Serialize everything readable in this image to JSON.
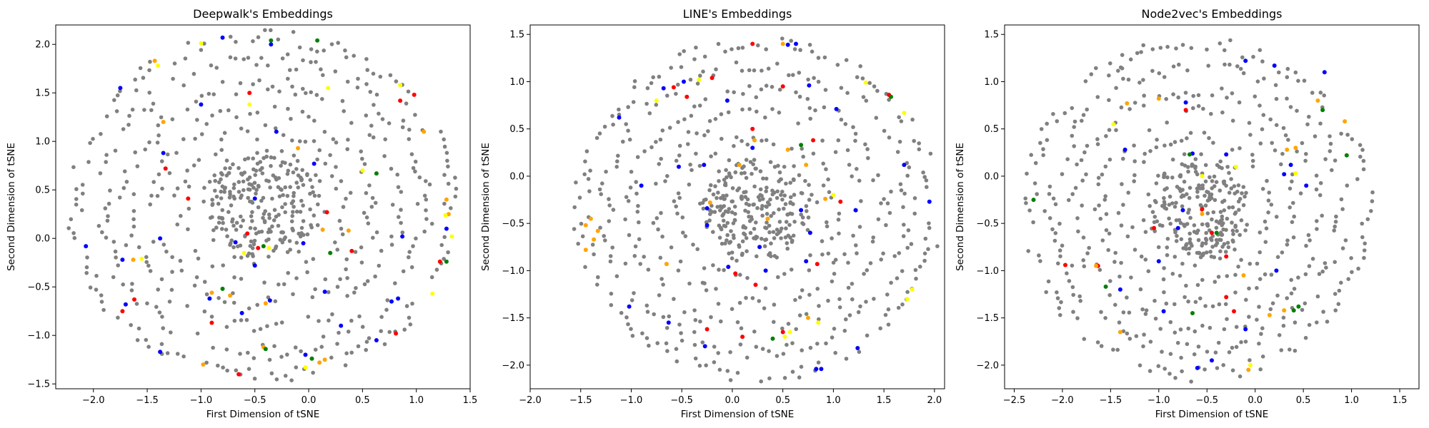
{
  "chart_data": [
    {
      "type": "scatter",
      "title": "Deepwalk's Embeddings",
      "xlabel": "First Dimension of tSNE",
      "ylabel": "Second Dimension of tSNE",
      "xlim": [
        -2.35,
        1.5
      ],
      "ylim": [
        -1.55,
        2.2
      ],
      "xticks": [
        -2.0,
        -1.5,
        -1.0,
        -0.5,
        0.0,
        0.5,
        1.0,
        1.5
      ],
      "yticks": [
        -1.5,
        -1.0,
        -0.5,
        0.0,
        0.5,
        1.0,
        1.5,
        2.0
      ],
      "xtick_labels": [
        "−2.0",
        "−1.5",
        "−1.0",
        "−0.5",
        "0.0",
        "0.5",
        "1.0",
        "1.5"
      ],
      "ytick_labels": [
        "−1.5",
        "−1.0",
        "−0.5",
        "0.0",
        "0.5",
        "1.0",
        "1.5",
        "2.0"
      ],
      "grid": false,
      "cloud": {
        "center": [
          -0.42,
          0.33
        ],
        "rx": 1.75,
        "ry": 1.75,
        "color": "#808080"
      },
      "colored_points": [
        {
          "color": "#0000ff",
          "points": [
            [
              -0.8,
              2.07
            ],
            [
              -1.75,
              1.55
            ],
            [
              -1.0,
              1.38
            ],
            [
              -1.35,
              0.88
            ],
            [
              -0.3,
              1.1
            ],
            [
              0.05,
              0.77
            ],
            [
              -0.5,
              0.41
            ],
            [
              -0.68,
              -0.04
            ],
            [
              -0.5,
              -0.28
            ],
            [
              -0.05,
              -0.05
            ],
            [
              -1.38,
              0.0
            ],
            [
              -2.07,
              -0.08
            ],
            [
              -1.73,
              -0.22
            ],
            [
              -1.7,
              -0.68
            ],
            [
              -0.92,
              -0.62
            ],
            [
              -1.38,
              -1.17
            ],
            [
              -0.62,
              -0.77
            ],
            [
              -0.36,
              -0.64
            ],
            [
              0.15,
              -0.55
            ],
            [
              0.77,
              -0.65
            ],
            [
              0.83,
              -0.62
            ],
            [
              0.87,
              0.02
            ],
            [
              1.28,
              0.1
            ],
            [
              0.63,
              -1.05
            ],
            [
              -0.35,
              2.0
            ],
            [
              0.3,
              -0.9
            ],
            [
              -0.03,
              -1.2
            ]
          ]
        },
        {
          "color": "#ff0000",
          "points": [
            [
              -1.33,
              0.72
            ],
            [
              -1.62,
              -0.63
            ],
            [
              -1.73,
              -0.75
            ],
            [
              -0.9,
              -0.87
            ],
            [
              -0.65,
              -1.4
            ],
            [
              -0.57,
              0.05
            ],
            [
              -0.47,
              -0.1
            ],
            [
              0.17,
              0.27
            ],
            [
              0.4,
              -0.13
            ],
            [
              0.98,
              1.48
            ],
            [
              0.85,
              1.42
            ],
            [
              -0.55,
              1.5
            ],
            [
              1.22,
              -0.24
            ],
            [
              0.81,
              -0.98
            ],
            [
              -1.12,
              0.41
            ]
          ]
        },
        {
          "color": "#ffa500",
          "points": [
            [
              -1.43,
              1.83
            ],
            [
              -1.35,
              1.2
            ],
            [
              -1.63,
              -0.22
            ],
            [
              -0.98,
              -1.3
            ],
            [
              -0.9,
              -0.56
            ],
            [
              -0.73,
              -0.59
            ],
            [
              -0.4,
              -0.67
            ],
            [
              -0.42,
              -1.12
            ],
            [
              0.1,
              -1.28
            ],
            [
              0.15,
              -1.25
            ],
            [
              0.37,
              0.08
            ],
            [
              1.07,
              1.1
            ],
            [
              1.28,
              0.4
            ],
            [
              1.3,
              0.25
            ],
            [
              0.13,
              0.09
            ],
            [
              -0.1,
              0.93
            ]
          ]
        },
        {
          "color": "#ffff00",
          "points": [
            [
              -1.55,
              -0.21
            ],
            [
              -1.0,
              2.01
            ],
            [
              -1.4,
              1.78
            ],
            [
              0.5,
              0.7
            ],
            [
              0.18,
              1.55
            ],
            [
              -0.55,
              1.38
            ],
            [
              -0.37,
              -0.1
            ],
            [
              1.33,
              0.02
            ],
            [
              1.15,
              -0.57
            ],
            [
              -0.03,
              -1.33
            ],
            [
              0.85,
              1.58
            ],
            [
              -0.6,
              -0.15
            ],
            [
              1.27,
              0.24
            ]
          ]
        },
        {
          "color": "#008000",
          "points": [
            [
              -0.35,
              2.04
            ],
            [
              0.08,
              2.04
            ],
            [
              0.63,
              0.67
            ],
            [
              -0.42,
              -0.08
            ],
            [
              -0.8,
              -0.52
            ],
            [
              0.03,
              -1.24
            ],
            [
              -0.4,
              -1.14
            ],
            [
              1.28,
              -0.24
            ],
            [
              0.2,
              -0.15
            ]
          ]
        }
      ]
    },
    {
      "type": "scatter",
      "title": "LINE's Embeddings",
      "xlabel": "First Dimension of tSNE",
      "ylabel": "Second Dimension of tSNE",
      "xlim": [
        -2.0,
        2.1
      ],
      "ylim": [
        -2.25,
        1.6
      ],
      "xticks": [
        -2.0,
        -1.5,
        -1.0,
        -0.5,
        0.0,
        0.5,
        1.0,
        1.5,
        2.0
      ],
      "yticks": [
        -2.0,
        -1.5,
        -1.0,
        -0.5,
        0.0,
        0.5,
        1.0,
        1.5
      ],
      "xtick_labels": [
        "−2.0",
        "−1.5",
        "−1.0",
        "−0.5",
        "0.0",
        "0.5",
        "1.0",
        "1.5",
        "2.0"
      ],
      "ytick_labels": [
        "−2.0",
        "−1.5",
        "−1.0",
        "−0.5",
        "0.0",
        "0.5",
        "1.0",
        "1.5"
      ],
      "grid": false,
      "cloud": {
        "center": [
          0.25,
          -0.35
        ],
        "rx": 1.75,
        "ry": 1.75,
        "color": "#808080"
      },
      "colored_points": [
        {
          "color": "#0000ff",
          "points": [
            [
              -1.12,
              0.62
            ],
            [
              -0.68,
              0.93
            ],
            [
              -0.48,
              1.0
            ],
            [
              -0.9,
              -0.1
            ],
            [
              -0.53,
              0.1
            ],
            [
              -0.28,
              0.12
            ],
            [
              0.2,
              0.3
            ],
            [
              -0.25,
              -0.52
            ],
            [
              -0.25,
              -0.34
            ],
            [
              -0.04,
              -0.96
            ],
            [
              0.33,
              -1.0
            ],
            [
              -0.63,
              -1.55
            ],
            [
              -0.27,
              -1.8
            ],
            [
              -1.02,
              -1.38
            ],
            [
              0.55,
              1.39
            ],
            [
              0.63,
              1.4
            ],
            [
              0.76,
              0.96
            ],
            [
              1.03,
              0.71
            ],
            [
              1.7,
              0.12
            ],
            [
              1.95,
              -0.27
            ],
            [
              1.22,
              -0.36
            ],
            [
              0.77,
              -0.6
            ],
            [
              0.73,
              -0.9
            ],
            [
              1.24,
              -1.82
            ],
            [
              0.83,
              -2.04
            ],
            [
              0.88,
              -2.04
            ],
            [
              0.68,
              -0.36
            ],
            [
              0.27,
              -0.75
            ],
            [
              -0.05,
              0.8
            ]
          ]
        },
        {
          "color": "#ff0000",
          "points": [
            [
              -0.58,
              0.94
            ],
            [
              -0.45,
              0.84
            ],
            [
              -0.2,
              1.04
            ],
            [
              0.2,
              1.4
            ],
            [
              0.5,
              0.95
            ],
            [
              0.8,
              0.38
            ],
            [
              1.07,
              -0.27
            ],
            [
              0.84,
              -0.93
            ],
            [
              0.23,
              -1.15
            ],
            [
              0.03,
              -1.03
            ],
            [
              -0.25,
              -1.62
            ],
            [
              0.5,
              -1.65
            ],
            [
              1.55,
              0.86
            ],
            [
              0.1,
              -1.7
            ],
            [
              0.2,
              0.5
            ]
          ]
        },
        {
          "color": "#ffa500",
          "points": [
            [
              -1.45,
              -0.52
            ],
            [
              -1.37,
              -0.67
            ],
            [
              -1.45,
              -0.78
            ],
            [
              -1.4,
              -0.45
            ],
            [
              -1.33,
              -0.58
            ],
            [
              0.22,
              0.38
            ],
            [
              0.55,
              0.28
            ],
            [
              0.73,
              0.12
            ],
            [
              0.07,
              0.12
            ],
            [
              0.35,
              -0.45
            ],
            [
              0.92,
              -0.24
            ],
            [
              0.5,
              1.4
            ],
            [
              0.75,
              -1.5
            ],
            [
              -0.65,
              -0.93
            ],
            [
              -0.22,
              -0.28
            ]
          ]
        },
        {
          "color": "#ffff00",
          "points": [
            [
              -0.33,
              1.02
            ],
            [
              1.7,
              0.67
            ],
            [
              1.78,
              -1.2
            ],
            [
              1.73,
              -1.3
            ],
            [
              0.85,
              -1.55
            ],
            [
              0.57,
              -1.65
            ],
            [
              1.32,
              0.99
            ],
            [
              -0.75,
              0.8
            ],
            [
              0.52,
              -1.7
            ],
            [
              1.0,
              -0.2
            ]
          ]
        },
        {
          "color": "#008000",
          "points": [
            [
              0.4,
              -1.72
            ],
            [
              1.57,
              0.84
            ],
            [
              0.68,
              0.33
            ]
          ]
        }
      ]
    },
    {
      "type": "scatter",
      "title": "Node2vec's Embeddings",
      "xlabel": "First Dimension of tSNE",
      "ylabel": "Second Dimension of tSNE",
      "xlim": [
        -2.6,
        1.7
      ],
      "ylim": [
        -2.25,
        1.6
      ],
      "xticks": [
        -2.5,
        -2.0,
        -1.5,
        -1.0,
        -0.5,
        0.0,
        0.5,
        1.0,
        1.5
      ],
      "yticks": [
        -2.0,
        -1.5,
        -1.0,
        -0.5,
        0.0,
        0.5,
        1.0,
        1.5
      ],
      "xtick_labels": [
        "−2.5",
        "−2.0",
        "−1.5",
        "−1.0",
        "−0.5",
        "0.0",
        "0.5",
        "1.0",
        "1.5"
      ],
      "ytick_labels": [
        "−2.0",
        "−1.5",
        "−1.0",
        "−0.5",
        "0.0",
        "0.5",
        "1.0",
        "1.5"
      ],
      "grid": false,
      "cloud": {
        "center": [
          -0.6,
          -0.35
        ],
        "rx": 1.75,
        "ry": 1.75,
        "color": "#808080"
      },
      "colored_points": [
        {
          "color": "#0000ff",
          "points": [
            [
              -0.1,
              1.22
            ],
            [
              0.2,
              1.17
            ],
            [
              -1.35,
              0.28
            ],
            [
              -0.72,
              0.78
            ],
            [
              -0.65,
              0.24
            ],
            [
              -0.3,
              0.23
            ],
            [
              -0.75,
              -0.36
            ],
            [
              -1.0,
              -0.9
            ],
            [
              -1.4,
              -1.2
            ],
            [
              -0.95,
              -1.43
            ],
            [
              -0.8,
              -0.55
            ],
            [
              0.3,
              0.02
            ],
            [
              0.37,
              0.12
            ],
            [
              0.53,
              -0.1
            ],
            [
              -0.6,
              -2.03
            ],
            [
              -0.45,
              -1.95
            ],
            [
              -0.1,
              -1.62
            ],
            [
              0.22,
              -1.0
            ],
            [
              0.72,
              1.1
            ]
          ]
        },
        {
          "color": "#ff0000",
          "points": [
            [
              -1.97,
              -0.94
            ],
            [
              -1.63,
              -0.95
            ],
            [
              -0.72,
              0.7
            ],
            [
              -0.55,
              -0.35
            ],
            [
              -0.45,
              -0.6
            ],
            [
              -0.3,
              -1.28
            ],
            [
              -0.22,
              -1.43
            ],
            [
              -0.3,
              -0.85
            ],
            [
              -1.05,
              -0.55
            ]
          ]
        },
        {
          "color": "#ffa500",
          "points": [
            [
              -1.33,
              0.77
            ],
            [
              -1.0,
              0.82
            ],
            [
              -0.55,
              -0.4
            ],
            [
              -0.12,
              -1.05
            ],
            [
              0.15,
              -1.47
            ],
            [
              0.3,
              -1.42
            ],
            [
              0.33,
              0.28
            ],
            [
              0.42,
              0.3
            ],
            [
              0.93,
              0.58
            ],
            [
              0.65,
              0.8
            ],
            [
              -0.07,
              -2.05
            ],
            [
              -1.4,
              -1.65
            ],
            [
              -1.65,
              -0.95
            ]
          ]
        },
        {
          "color": "#ffff00",
          "points": [
            [
              -1.47,
              0.55
            ],
            [
              0.42,
              0.03
            ],
            [
              -0.05,
              -2.0
            ],
            [
              -0.55,
              0.0
            ],
            [
              -0.2,
              0.1
            ]
          ]
        },
        {
          "color": "#008000",
          "points": [
            [
              -2.3,
              -0.25
            ],
            [
              -1.55,
              -1.17
            ],
            [
              -0.65,
              -1.45
            ],
            [
              0.7,
              0.7
            ],
            [
              0.95,
              0.22
            ],
            [
              0.45,
              -1.38
            ],
            [
              0.4,
              -1.42
            ],
            [
              -0.4,
              -0.6
            ],
            [
              -0.68,
              0.23
            ]
          ]
        }
      ]
    }
  ]
}
